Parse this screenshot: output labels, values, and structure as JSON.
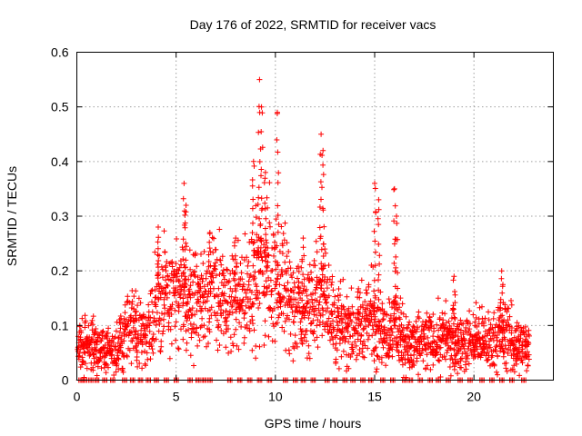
{
  "chart_data": {
    "type": "scatter",
    "marker": "plus",
    "color": "#ff0000",
    "title": "Day 176 of 2022, SRMTID for receiver vacs",
    "xlabel": "GPS time / hours",
    "ylabel": "SRMTID / TECUs",
    "xlim": [
      0,
      24
    ],
    "ylim": [
      0,
      0.6
    ],
    "xticks": [
      0,
      5,
      10,
      15,
      20
    ],
    "xtick_labels": [
      "0",
      "5",
      "10",
      "15",
      "20"
    ],
    "yticks": [
      0,
      0.1,
      0.2,
      0.3,
      0.4,
      0.5,
      0.6
    ],
    "ytick_labels": [
      "0",
      "0.1",
      "0.2",
      "0.3",
      "0.4",
      "0.5",
      "0.6"
    ],
    "grid": true,
    "series": [
      {
        "name": "SRMTID",
        "description": "approximate trend of the plotted points (hour, TECU)",
        "trend": [
          [
            0.0,
            0.06
          ],
          [
            0.5,
            0.06
          ],
          [
            1.0,
            0.06
          ],
          [
            1.5,
            0.05
          ],
          [
            2.0,
            0.05
          ],
          [
            2.5,
            0.1
          ],
          [
            3.0,
            0.09
          ],
          [
            3.5,
            0.08
          ],
          [
            4.0,
            0.15
          ],
          [
            4.5,
            0.15
          ],
          [
            5.0,
            0.15
          ],
          [
            5.5,
            0.14
          ],
          [
            6.0,
            0.15
          ],
          [
            6.5,
            0.15
          ],
          [
            7.0,
            0.17
          ],
          [
            7.5,
            0.13
          ],
          [
            8.0,
            0.14
          ],
          [
            8.5,
            0.15
          ],
          [
            9.0,
            0.2
          ],
          [
            9.5,
            0.2
          ],
          [
            10.0,
            0.19
          ],
          [
            10.5,
            0.17
          ],
          [
            11.0,
            0.13
          ],
          [
            11.5,
            0.12
          ],
          [
            12.0,
            0.14
          ],
          [
            12.5,
            0.16
          ],
          [
            13.0,
            0.1
          ],
          [
            13.5,
            0.1
          ],
          [
            14.0,
            0.09
          ],
          [
            14.5,
            0.11
          ],
          [
            15.0,
            0.12
          ],
          [
            15.5,
            0.09
          ],
          [
            16.0,
            0.1
          ],
          [
            16.5,
            0.07
          ],
          [
            17.0,
            0.06
          ],
          [
            17.5,
            0.07
          ],
          [
            18.0,
            0.07
          ],
          [
            18.5,
            0.08
          ],
          [
            19.0,
            0.07
          ],
          [
            19.5,
            0.07
          ],
          [
            20.0,
            0.07
          ],
          [
            20.5,
            0.07
          ],
          [
            21.0,
            0.07
          ],
          [
            21.5,
            0.09
          ],
          [
            22.0,
            0.07
          ],
          [
            22.5,
            0.06
          ],
          [
            22.8,
            0.06
          ]
        ],
        "peaks": [
          [
            4.1,
            0.28
          ],
          [
            5.4,
            0.36
          ],
          [
            5.5,
            0.32
          ],
          [
            6.7,
            0.27
          ],
          [
            8.0,
            0.26
          ],
          [
            8.9,
            0.4
          ],
          [
            9.2,
            0.55
          ],
          [
            9.3,
            0.5
          ],
          [
            9.5,
            0.38
          ],
          [
            10.1,
            0.49
          ],
          [
            11.4,
            0.26
          ],
          [
            12.3,
            0.45
          ],
          [
            12.4,
            0.42
          ],
          [
            15.0,
            0.36
          ],
          [
            15.2,
            0.33
          ],
          [
            16.0,
            0.35
          ],
          [
            16.1,
            0.3
          ],
          [
            19.0,
            0.19
          ],
          [
            21.4,
            0.2
          ]
        ],
        "zero_points_hours": [
          0.1,
          0.3,
          0.6,
          0.9,
          1.3,
          1.7,
          2.3,
          2.7,
          3.1,
          3.5,
          3.9,
          4.4,
          4.9,
          5.6,
          6.0,
          6.3,
          6.6,
          7.6,
          8.1,
          8.6,
          9.1,
          9.6,
          10.4,
          10.9,
          11.3,
          11.8,
          12.5,
          12.9,
          13.4,
          13.8,
          14.3,
          14.7,
          15.3,
          15.8,
          16.4,
          16.7,
          17.2,
          17.7,
          18.1,
          18.6,
          19.2,
          19.7,
          20.3,
          20.8,
          21.3,
          21.8,
          22.4
        ]
      }
    ]
  }
}
